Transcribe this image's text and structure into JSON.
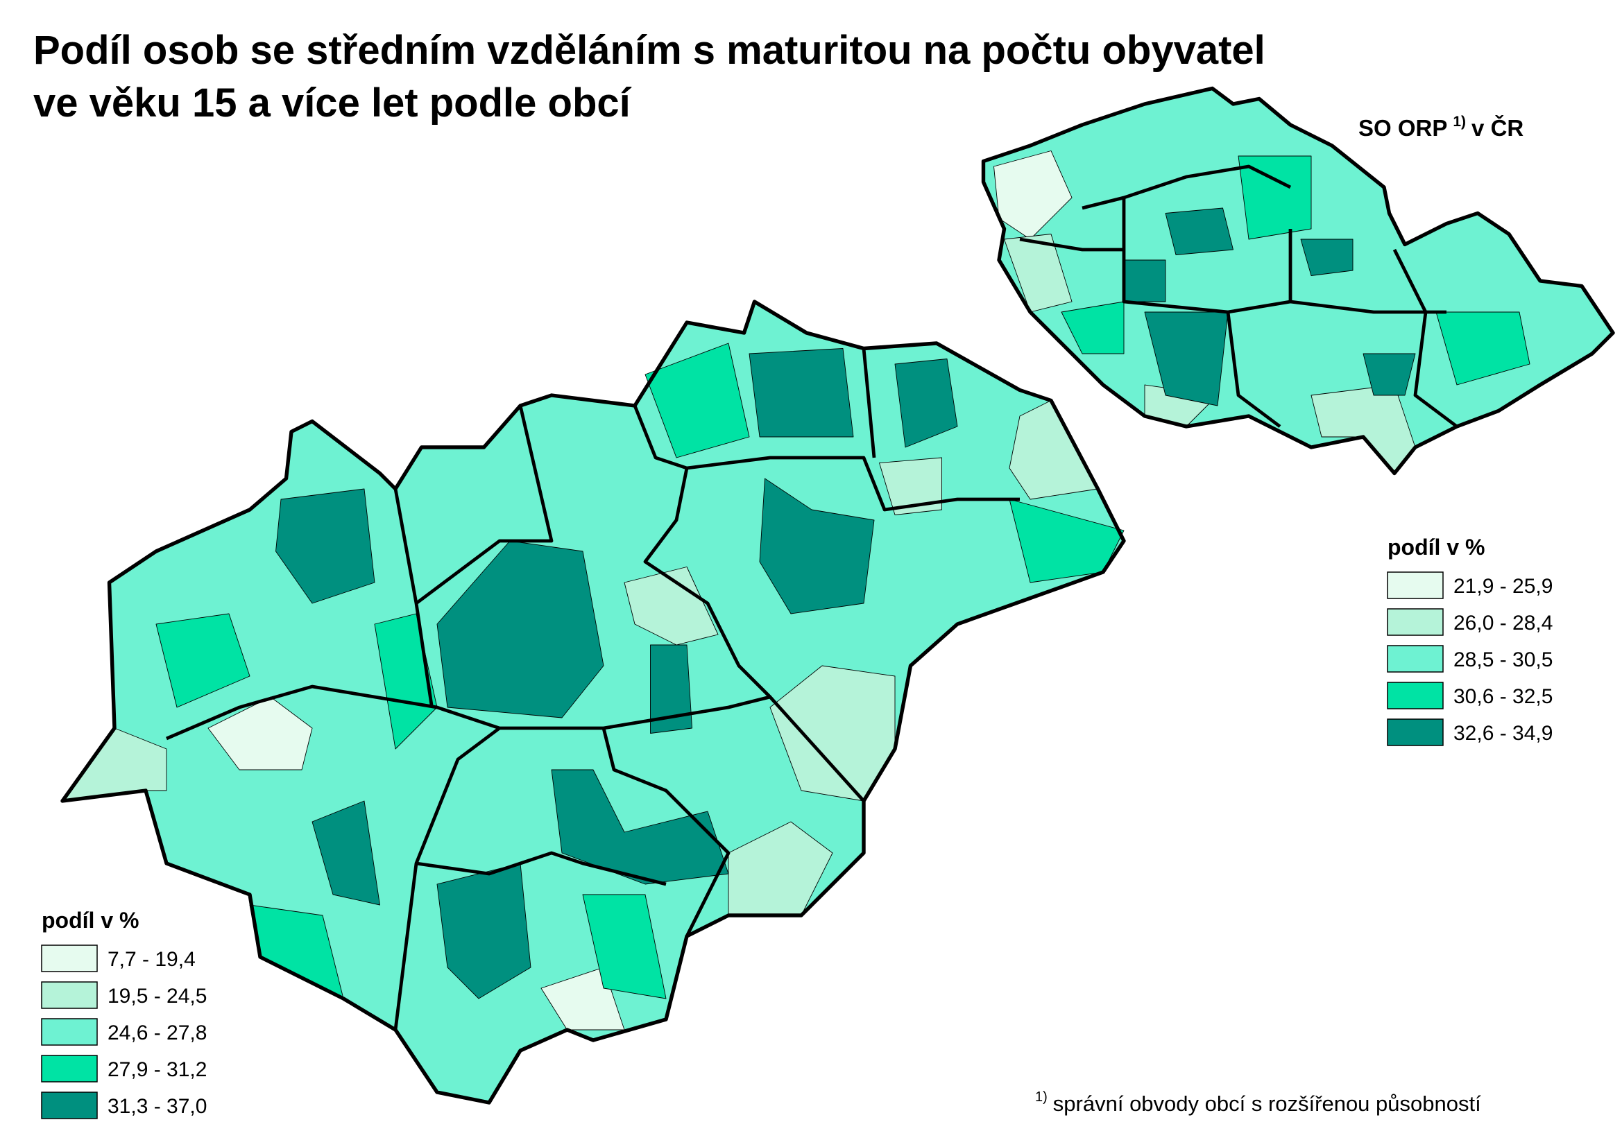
{
  "title": [
    "Podíl osob se středním vzděláním s maturitou na počtu obyvatel",
    "ve věku 15 a více let podle obcí"
  ],
  "inset": {
    "label": "SO ORP",
    "mark": "1)",
    "label_end": "v ČR"
  },
  "legend_municipalities": {
    "title": "podíl v %",
    "items": [
      {
        "label": "7,7 - 19,4",
        "color": "#e6fbef"
      },
      {
        "label": "19,5 - 24,5",
        "color": "#b5f3d9"
      },
      {
        "label": "24,6 - 27,8",
        "color": "#6ef2d2"
      },
      {
        "label": "27,9 - 31,2",
        "color": "#00e3a4"
      },
      {
        "label": "31,3 - 37,0",
        "color": "#00907f"
      }
    ]
  },
  "legend_orp": {
    "title": "podíl v %",
    "items": [
      {
        "label": "21,9 - 25,9",
        "color": "#e6fbef"
      },
      {
        "label": "26,0 - 28,4",
        "color": "#b5f3d9"
      },
      {
        "label": "28,5 - 30,5",
        "color": "#6ef2d2"
      },
      {
        "label": "30,6 - 32,5",
        "color": "#00e3a4"
      },
      {
        "label": "32,6 - 34,9",
        "color": "#00907f"
      }
    ]
  },
  "footnote": {
    "mark": "1)",
    "text": "správní obvody obcí s rozšířenou působností"
  }
}
